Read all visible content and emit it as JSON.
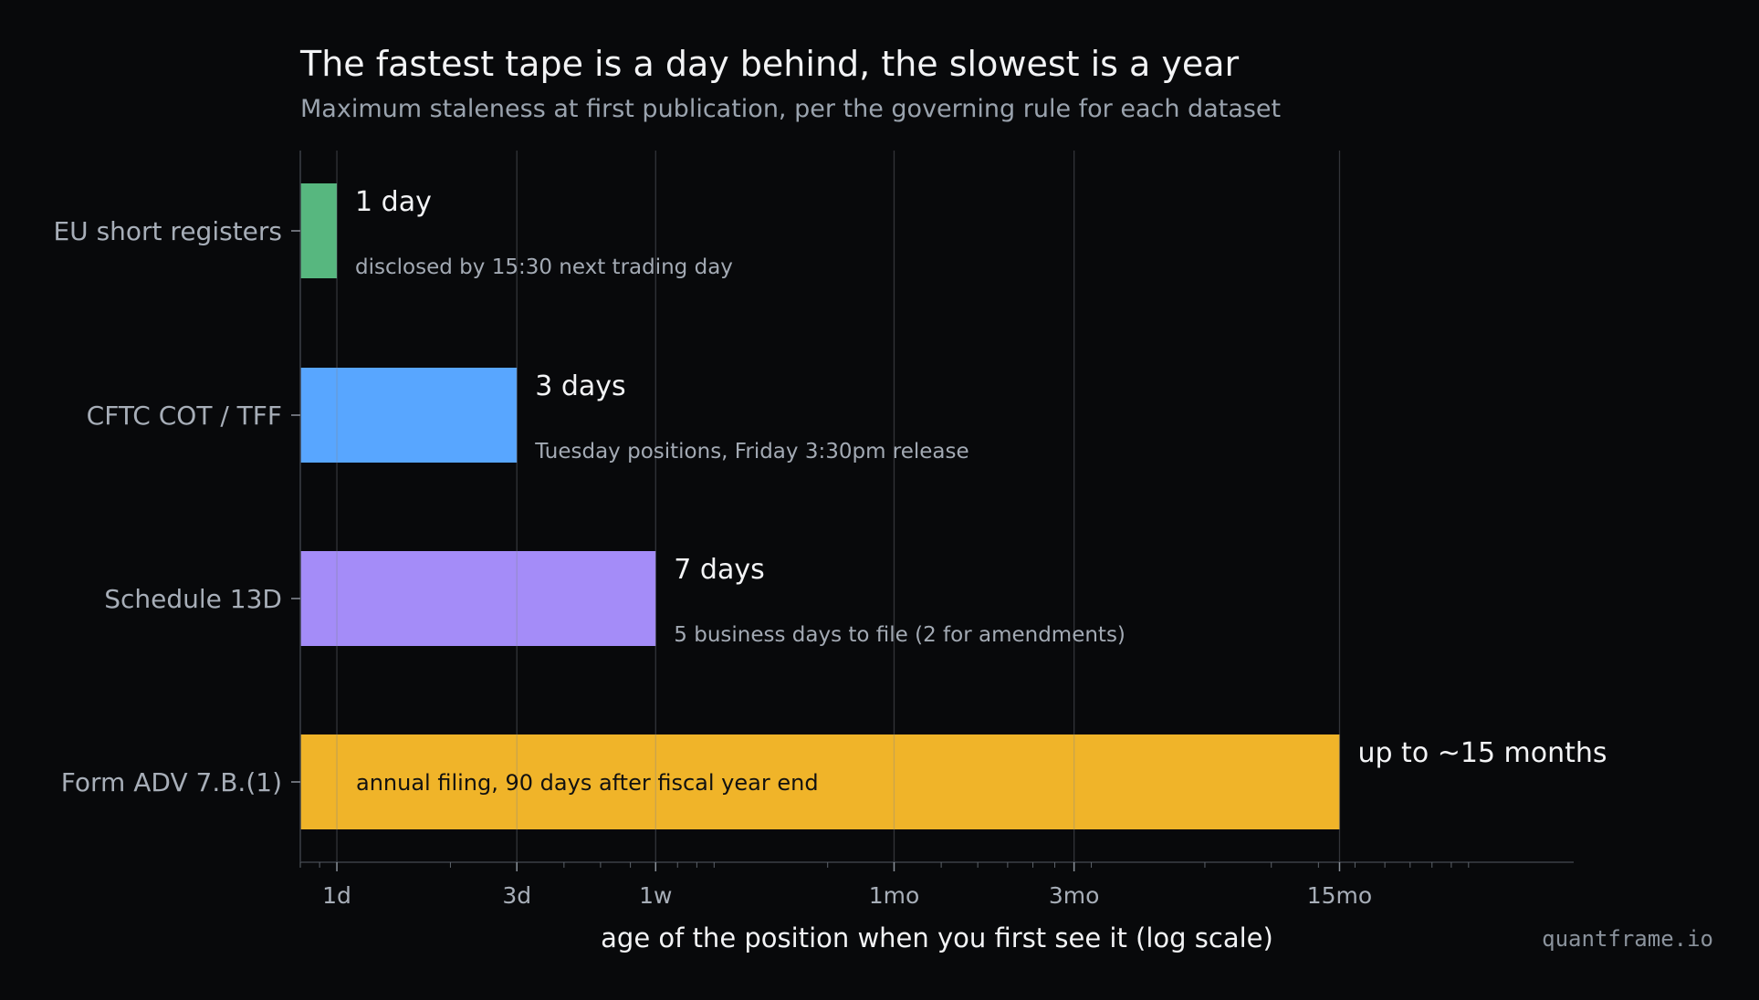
{
  "header": {
    "title": "The fastest tape is a day behind, the slowest is a year",
    "subtitle": "Maximum staleness at first publication, per the governing rule for each dataset"
  },
  "watermark": "quantframe.io",
  "chart_data": {
    "type": "bar",
    "orientation": "horizontal",
    "x_scale": "log",
    "x_unit": "days",
    "xlim": [
      0.8,
      1900
    ],
    "xlabel": "age of the position when you first see it (log scale)",
    "ylabel": "",
    "grid": true,
    "ticks": [
      {
        "label": "1d",
        "value": 1
      },
      {
        "label": "3d",
        "value": 3
      },
      {
        "label": "1w",
        "value": 7
      },
      {
        "label": "1mo",
        "value": 30
      },
      {
        "label": "3mo",
        "value": 90
      },
      {
        "label": "15mo",
        "value": 455
      }
    ],
    "categories": [
      "EU short registers",
      "CFTC COT / TFF",
      "Schedule 13D",
      "Form ADV 7.B.(1)"
    ],
    "values": [
      1,
      3,
      7,
      455
    ],
    "value_labels": [
      "1 day",
      "3 days",
      "7 days",
      "up to ~15 months"
    ],
    "notes": [
      "disclosed by 15:30 next trading day",
      "Tuesday positions, Friday 3:30pm release",
      "5 business days to file (2 for amendments)",
      "annual filing, 90 days after fiscal year end"
    ],
    "colors": [
      "#57b77f",
      "#58a6ff",
      "#a48cf8",
      "#f0b429"
    ]
  }
}
